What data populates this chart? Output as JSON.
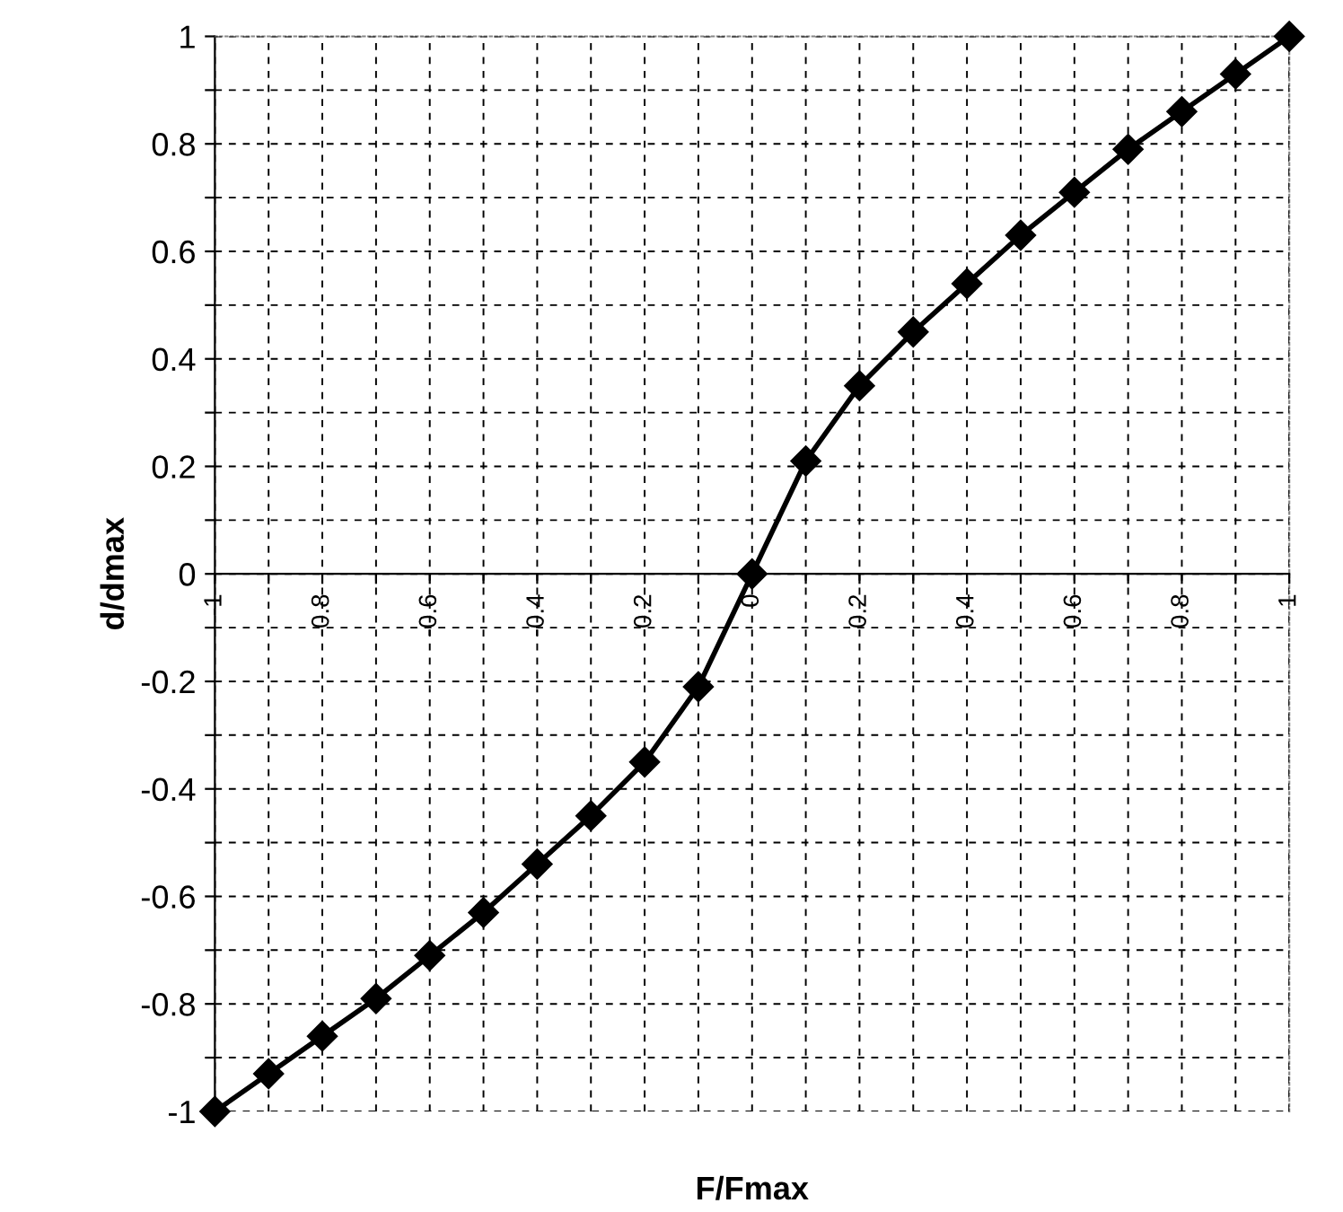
{
  "chart_data": {
    "type": "line",
    "xlabel": "F/Fmax",
    "ylabel": "d/dmax",
    "x": [
      -1,
      -0.9,
      -0.8,
      -0.7,
      -0.6,
      -0.5,
      -0.4,
      -0.3,
      -0.2,
      -0.1,
      0,
      0.1,
      0.2,
      0.3,
      0.4,
      0.5,
      0.6,
      0.7,
      0.8,
      0.9,
      1
    ],
    "series": [
      {
        "color": "#000000",
        "values": [
          -1,
          -0.93,
          -0.86,
          -0.79,
          -0.71,
          -0.63,
          -0.54,
          -0.45,
          -0.35,
          -0.21,
          0,
          0.21,
          0.35,
          0.45,
          0.54,
          0.63,
          0.71,
          0.79,
          0.86,
          0.93,
          1
        ]
      }
    ],
    "xlim": [
      -1,
      1
    ],
    "ylim": [
      -1,
      1
    ],
    "xticks": [
      -1,
      {
        "value": -0.9,
        "label": null
      },
      -0.8,
      {
        "value": -0.7,
        "label": null
      },
      -0.6,
      {
        "value": -0.5,
        "label": null
      },
      -0.4,
      {
        "value": -0.3,
        "label": null
      },
      -0.2,
      {
        "value": -0.1,
        "label": null
      },
      0,
      {
        "value": 0.1,
        "label": null
      },
      0.2,
      {
        "value": 0.3,
        "label": null
      },
      0.4,
      {
        "value": 0.5,
        "label": null
      },
      0.6,
      {
        "value": 0.7,
        "label": null
      },
      0.8,
      {
        "value": 0.9,
        "label": null
      },
      1
    ],
    "yticks": [
      -1,
      {
        "value": -0.9,
        "label": null
      },
      -0.8,
      {
        "value": -0.7,
        "label": null
      },
      -0.6,
      {
        "value": -0.5,
        "label": null
      },
      -0.4,
      {
        "value": -0.3,
        "label": null
      },
      -0.2,
      {
        "value": -0.1,
        "label": null
      },
      0,
      {
        "value": 0.1,
        "label": null
      },
      0.2,
      {
        "value": 0.3,
        "label": null
      },
      0.4,
      {
        "value": 0.5,
        "label": null
      },
      0.6,
      {
        "value": 0.7,
        "label": null
      },
      0.8,
      {
        "value": 0.9,
        "label": null
      },
      1
    ],
    "grid": true,
    "marker": "diamond",
    "line_style": "solid"
  }
}
